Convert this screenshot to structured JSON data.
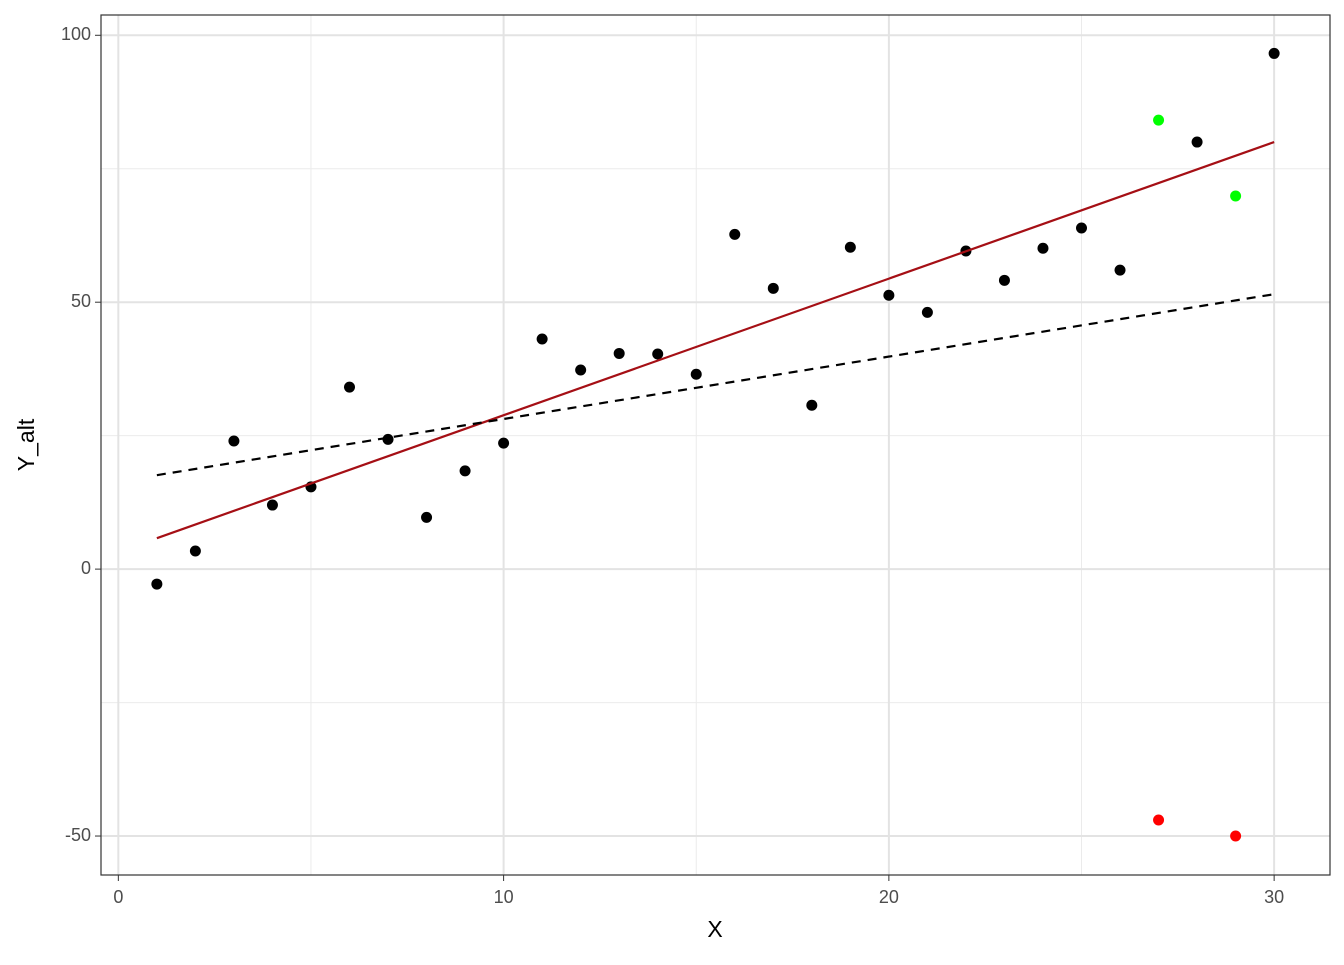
{
  "chart_data": {
    "type": "scatter",
    "x_label": "X",
    "y_label": "Y_alt",
    "xlim": [
      -0.45,
      31.45
    ],
    "ylim": [
      -57.3,
      103.8
    ],
    "xticks": [
      0,
      10,
      20,
      30
    ],
    "yticks": [
      -50,
      0,
      50,
      100
    ],
    "xminorticks": [
      5,
      15,
      25
    ],
    "yminorticks": [
      -25,
      25,
      75
    ],
    "grid": true,
    "series": [
      {
        "mode": "points",
        "color": "#000000",
        "x": [
          1,
          2,
          3,
          4,
          5,
          6,
          7,
          8,
          9,
          10,
          11,
          12,
          13,
          14,
          15,
          16,
          17,
          18,
          19,
          20,
          21,
          22,
          23,
          24,
          25,
          26,
          28,
          30
        ],
        "values": [
          -2.8,
          3.4,
          24.0,
          12.0,
          15.4,
          34.1,
          24.3,
          9.7,
          18.4,
          23.6,
          43.1,
          37.3,
          40.4,
          40.3,
          36.5,
          62.7,
          52.6,
          30.7,
          60.3,
          51.3,
          48.1,
          59.6,
          54.1,
          60.1,
          63.9,
          56.0,
          80.0,
          96.6
        ]
      },
      {
        "mode": "points",
        "color": "#00ff00",
        "x": [
          27,
          29
        ],
        "values": [
          84.1,
          69.9
        ]
      },
      {
        "mode": "points",
        "color": "#ff0000",
        "x": [
          27,
          29
        ],
        "values": [
          -47.0,
          -50.0
        ]
      },
      {
        "mode": "line",
        "color": "#a50f15",
        "dash": false,
        "x": [
          1,
          30
        ],
        "values": [
          5.8,
          80.0
        ]
      },
      {
        "mode": "line",
        "color": "#000000",
        "dash": true,
        "x": [
          1,
          30
        ],
        "values": [
          17.6,
          51.5
        ]
      }
    ]
  }
}
